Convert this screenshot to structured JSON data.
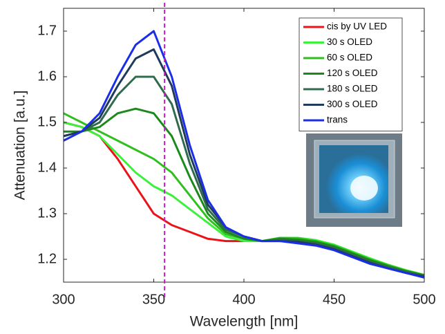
{
  "chart_data": {
    "type": "line",
    "x_label": "Wavelength [nm]",
    "y_label": "Attenuation [a.u.]",
    "x": [
      300,
      310,
      320,
      330,
      340,
      350,
      360,
      370,
      380,
      390,
      400,
      410,
      420,
      430,
      440,
      450,
      460,
      470,
      480,
      490,
      500
    ],
    "series": [
      {
        "name": "cis by UV LED",
        "color": "#e8141a",
        "values": [
          1.5,
          1.49,
          1.47,
          1.42,
          1.36,
          1.3,
          1.275,
          1.26,
          1.245,
          1.24,
          1.24,
          null,
          null,
          null,
          null,
          null,
          null,
          null,
          null,
          null,
          null
        ]
      },
      {
        "name": "30 s OLED",
        "color": "#3cf03c",
        "values": [
          1.5,
          1.49,
          1.47,
          1.43,
          1.39,
          1.36,
          1.34,
          1.31,
          1.28,
          1.25,
          1.24,
          1.24,
          1.247,
          1.247,
          1.242,
          1.232,
          1.217,
          1.202,
          1.188,
          1.176,
          1.166
        ]
      },
      {
        "name": "60 s OLED",
        "color": "#2fbf1f",
        "values": [
          1.52,
          1.5,
          1.48,
          1.46,
          1.44,
          1.42,
          1.39,
          1.34,
          1.29,
          1.255,
          1.245,
          1.24,
          1.247,
          1.246,
          1.24,
          1.23,
          1.215,
          1.2,
          1.187,
          1.175,
          1.165
        ]
      },
      {
        "name": "120 s OLED",
        "color": "#1b8a1b",
        "values": [
          1.48,
          1.48,
          1.49,
          1.52,
          1.53,
          1.52,
          1.47,
          1.38,
          1.3,
          1.26,
          1.245,
          1.24,
          1.245,
          1.243,
          1.238,
          1.228,
          1.213,
          1.198,
          1.185,
          1.174,
          1.165
        ]
      },
      {
        "name": "180 s OLED",
        "color": "#2f6b4c",
        "values": [
          1.47,
          1.48,
          1.5,
          1.56,
          1.6,
          1.6,
          1.54,
          1.41,
          1.31,
          1.265,
          1.25,
          1.24,
          1.242,
          1.24,
          1.235,
          1.225,
          1.21,
          1.195,
          1.182,
          1.172,
          1.163
        ]
      },
      {
        "name": "300 s OLED",
        "color": "#1f3b5b",
        "values": [
          1.47,
          1.48,
          1.51,
          1.58,
          1.64,
          1.66,
          1.58,
          1.43,
          1.32,
          1.27,
          1.25,
          1.24,
          1.24,
          1.238,
          1.232,
          1.222,
          1.207,
          1.192,
          1.18,
          1.17,
          1.162
        ]
      },
      {
        "name": "trans",
        "color": "#1a2ee6",
        "values": [
          1.46,
          1.48,
          1.52,
          1.6,
          1.67,
          1.7,
          1.6,
          1.45,
          1.33,
          1.27,
          1.25,
          1.24,
          1.24,
          1.235,
          1.23,
          1.22,
          1.205,
          1.19,
          1.18,
          1.17,
          1.16
        ]
      }
    ],
    "xlim": [
      300,
      500
    ],
    "ylim": [
      1.15,
      1.75
    ],
    "xticks": [
      300,
      350,
      400,
      450,
      500
    ],
    "yticks": [
      1.2,
      1.3,
      1.4,
      1.5,
      1.6,
      1.7
    ],
    "vline": {
      "x": 356,
      "color": "#c21cc2"
    },
    "legend": "upper right"
  }
}
